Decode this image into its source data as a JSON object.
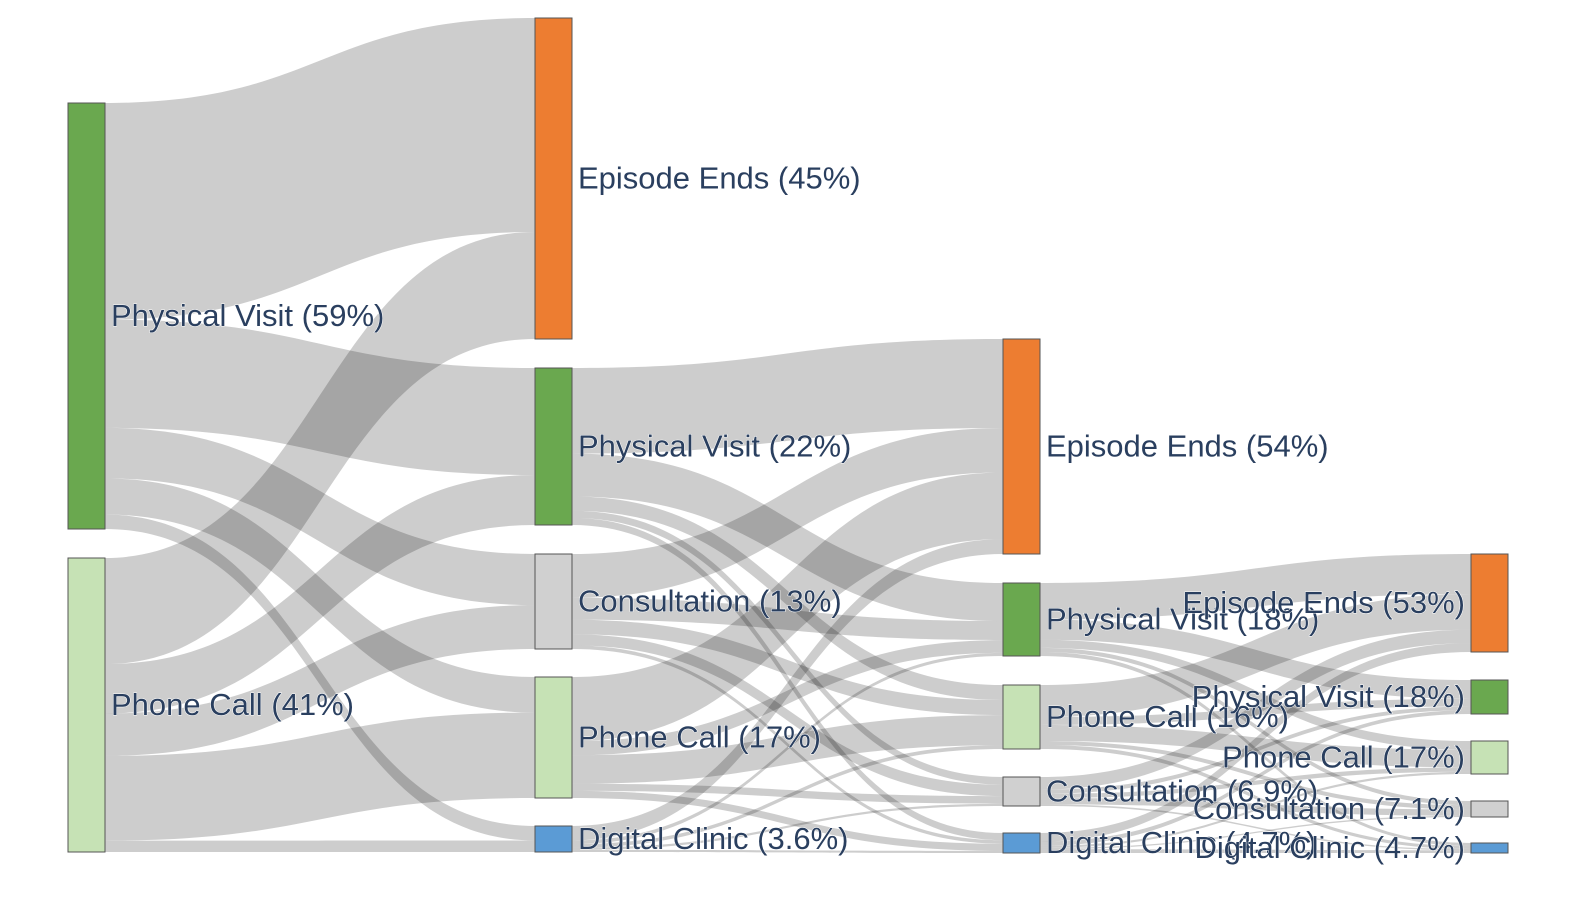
{
  "colors": {
    "Physical Visit": "#6aa84f",
    "Phone Call": "#c6e2b5",
    "Episode Ends": "#ed7d31",
    "Consultation": "#d0d0d0",
    "Digital Clinic": "#5b9bd5",
    "link": "#c8c8c8"
  },
  "stages": [
    {
      "nodes": [
        {
          "id": "s0_pv",
          "name": "Physical Visit",
          "label": "Physical Visit (59%)",
          "value": 59
        },
        {
          "id": "s0_pc",
          "name": "Phone Call",
          "label": "Phone Call (41%)",
          "value": 41
        }
      ]
    },
    {
      "nodes": [
        {
          "id": "s1_ee",
          "name": "Episode Ends",
          "label": "Episode Ends (45%)",
          "value": 45
        },
        {
          "id": "s1_pv",
          "name": "Physical Visit",
          "label": "Physical Visit (22%)",
          "value": 22
        },
        {
          "id": "s1_co",
          "name": "Consultation",
          "label": "Consultation (13%)",
          "value": 13
        },
        {
          "id": "s1_pc",
          "name": "Phone Call",
          "label": "Phone Call (17%)",
          "value": 17
        },
        {
          "id": "s1_dc",
          "name": "Digital Clinic",
          "label": "Digital Clinic (3.6%)",
          "value": 3.6
        }
      ]
    },
    {
      "nodes": [
        {
          "id": "s2_ee",
          "name": "Episode Ends",
          "label": "Episode Ends (54%)",
          "value": 54
        },
        {
          "id": "s2_pv",
          "name": "Physical Visit",
          "label": "Physical Visit (18%)",
          "value": 18
        },
        {
          "id": "s2_pc",
          "name": "Phone Call",
          "label": "Phone Call (16%)",
          "value": 16
        },
        {
          "id": "s2_co",
          "name": "Consultation",
          "label": "Consultation (6.9%)",
          "value": 6.9
        },
        {
          "id": "s2_dc",
          "name": "Digital Clinic",
          "label": "Digital Clinic (4.7%)",
          "value": 4.7
        }
      ]
    },
    {
      "nodes": [
        {
          "id": "s3_ee",
          "name": "Episode Ends",
          "label": "Episode Ends (53%)",
          "value": 53
        },
        {
          "id": "s3_pv",
          "name": "Physical Visit",
          "label": "Physical Visit (18%)",
          "value": 18
        },
        {
          "id": "s3_pc",
          "name": "Phone Call",
          "label": "Phone Call (17%)",
          "value": 17
        },
        {
          "id": "s3_co",
          "name": "Consultation",
          "label": "Consultation (7.1%)",
          "value": 7.1
        },
        {
          "id": "s3_dc",
          "name": "Digital Clinic",
          "label": "Digital Clinic (4.7%)",
          "value": 4.7
        }
      ]
    }
  ],
  "links": [
    {
      "source": "s0_pv",
      "target": "s1_ee",
      "value": 30
    },
    {
      "source": "s0_pv",
      "target": "s1_pv",
      "value": 15
    },
    {
      "source": "s0_pv",
      "target": "s1_co",
      "value": 7
    },
    {
      "source": "s0_pv",
      "target": "s1_pc",
      "value": 5
    },
    {
      "source": "s0_pv",
      "target": "s1_dc",
      "value": 2
    },
    {
      "source": "s0_pc",
      "target": "s1_ee",
      "value": 15
    },
    {
      "source": "s0_pc",
      "target": "s1_pv",
      "value": 7
    },
    {
      "source": "s0_pc",
      "target": "s1_co",
      "value": 6
    },
    {
      "source": "s0_pc",
      "target": "s1_pc",
      "value": 12
    },
    {
      "source": "s0_pc",
      "target": "s1_dc",
      "value": 1.6
    },
    {
      "source": "s1_pv",
      "target": "s2_ee",
      "value": 12
    },
    {
      "source": "s1_pv",
      "target": "s2_pv",
      "value": 6
    },
    {
      "source": "s1_pv",
      "target": "s2_pc",
      "value": 2
    },
    {
      "source": "s1_pv",
      "target": "s2_co",
      "value": 1
    },
    {
      "source": "s1_pv",
      "target": "s2_dc",
      "value": 1
    },
    {
      "source": "s1_co",
      "target": "s2_ee",
      "value": 6
    },
    {
      "source": "s1_co",
      "target": "s2_pv",
      "value": 3
    },
    {
      "source": "s1_co",
      "target": "s2_pc",
      "value": 2
    },
    {
      "source": "s1_co",
      "target": "s2_co",
      "value": 1.5
    },
    {
      "source": "s1_co",
      "target": "s2_dc",
      "value": 0.5
    },
    {
      "source": "s1_pc",
      "target": "s2_ee",
      "value": 9
    },
    {
      "source": "s1_pc",
      "target": "s2_pv",
      "value": 2
    },
    {
      "source": "s1_pc",
      "target": "s2_pc",
      "value": 4
    },
    {
      "source": "s1_pc",
      "target": "s2_co",
      "value": 1
    },
    {
      "source": "s1_pc",
      "target": "s2_dc",
      "value": 1
    },
    {
      "source": "s1_dc",
      "target": "s2_ee",
      "value": 2
    },
    {
      "source": "s1_dc",
      "target": "s2_pv",
      "value": 0.5
    },
    {
      "source": "s1_dc",
      "target": "s2_pc",
      "value": 0.5
    },
    {
      "source": "s1_dc",
      "target": "s2_co",
      "value": 0.3
    },
    {
      "source": "s1_dc",
      "target": "s2_dc",
      "value": 0.3
    },
    {
      "source": "s2_pv",
      "target": "s3_ee",
      "value": 9
    },
    {
      "source": "s2_pv",
      "target": "s3_pv",
      "value": 5
    },
    {
      "source": "s2_pv",
      "target": "s3_pc",
      "value": 2
    },
    {
      "source": "s2_pv",
      "target": "s3_co",
      "value": 1
    },
    {
      "source": "s2_pv",
      "target": "s3_dc",
      "value": 1
    },
    {
      "source": "s2_pc",
      "target": "s3_ee",
      "value": 8
    },
    {
      "source": "s2_pc",
      "target": "s3_pv",
      "value": 2
    },
    {
      "source": "s2_pc",
      "target": "s3_pc",
      "value": 4
    },
    {
      "source": "s2_pc",
      "target": "s3_co",
      "value": 1
    },
    {
      "source": "s2_pc",
      "target": "s3_dc",
      "value": 1
    },
    {
      "source": "s2_co",
      "target": "s3_ee",
      "value": 3
    },
    {
      "source": "s2_co",
      "target": "s3_pv",
      "value": 1
    },
    {
      "source": "s2_co",
      "target": "s3_pc",
      "value": 1
    },
    {
      "source": "s2_co",
      "target": "s3_co",
      "value": 1.5
    },
    {
      "source": "s2_co",
      "target": "s3_dc",
      "value": 0.4
    },
    {
      "source": "s2_dc",
      "target": "s3_ee",
      "value": 2
    },
    {
      "source": "s2_dc",
      "target": "s3_pv",
      "value": 1
    },
    {
      "source": "s2_dc",
      "target": "s3_pc",
      "value": 0.5
    },
    {
      "source": "s2_dc",
      "target": "s3_co",
      "value": 0.3
    },
    {
      "source": "s2_dc",
      "target": "s3_dc",
      "value": 0.9
    }
  ]
}
